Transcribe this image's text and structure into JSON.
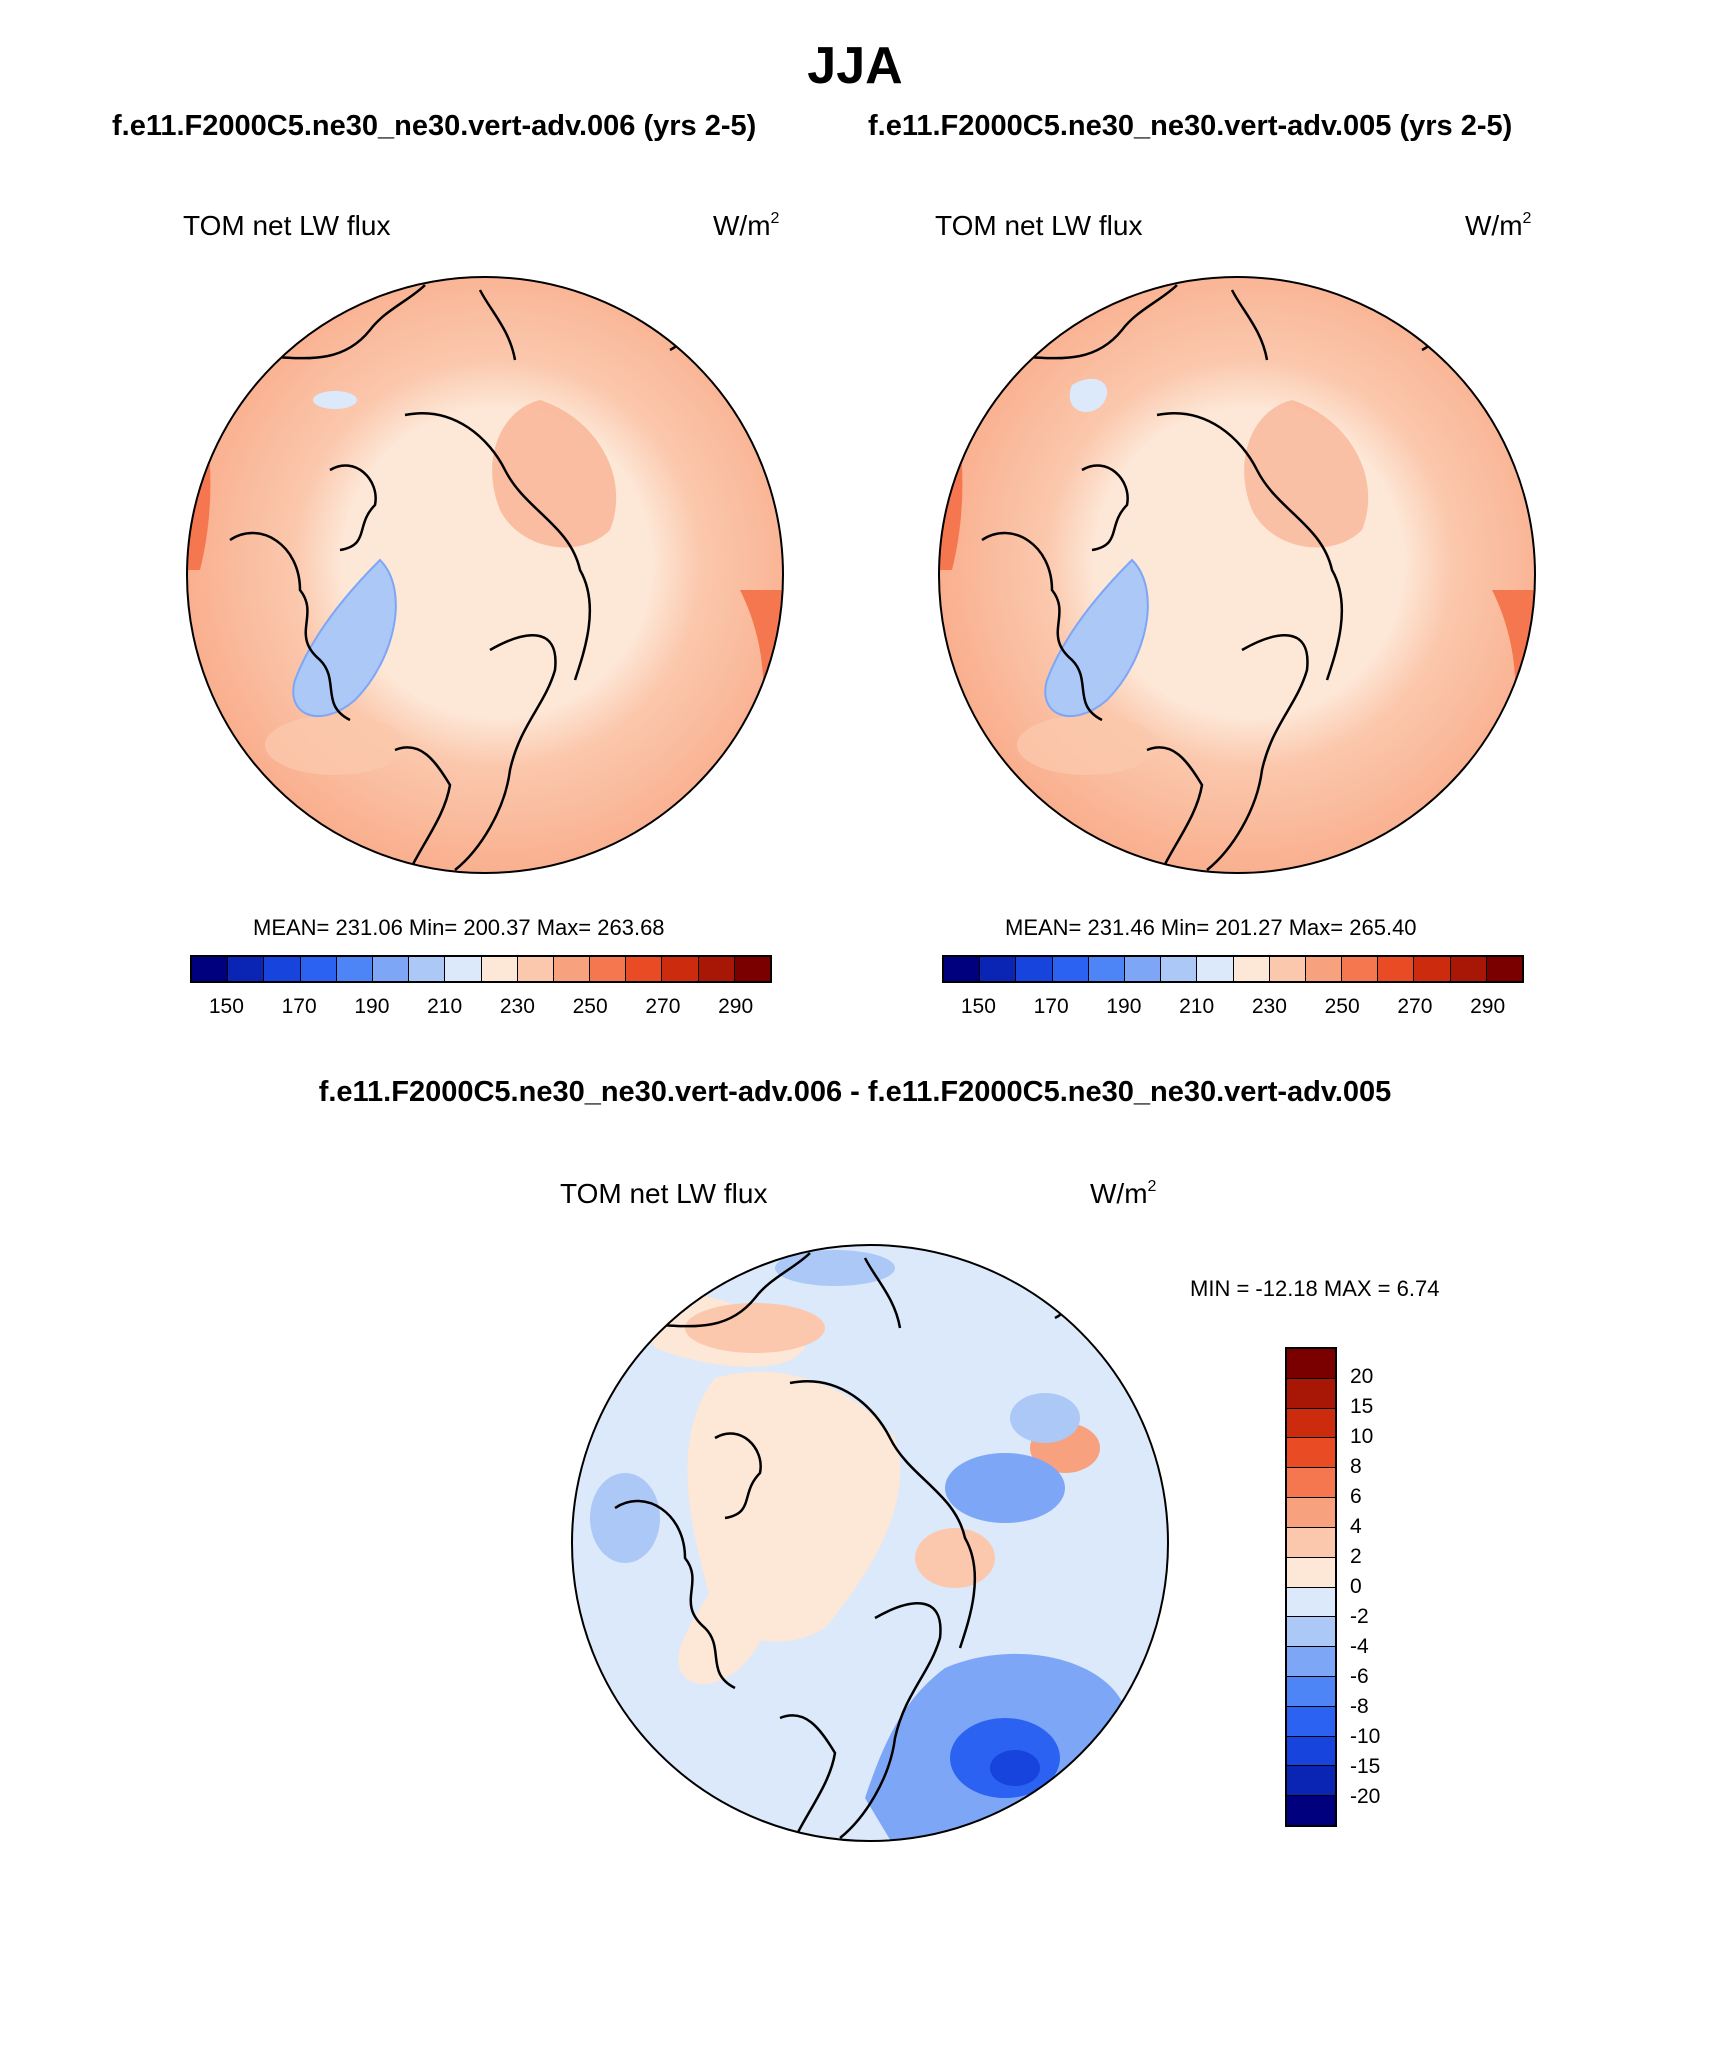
{
  "title": "JJA",
  "panels": [
    {
      "case": "f.e11.F2000C5.ne30_ne30.vert-adv.006 (yrs 2-5)",
      "variable": "TOM net LW flux",
      "units_base": "W/m",
      "units_exp": "2",
      "stats": "MEAN= 231.06  Min= 200.37  Max= 263.68"
    },
    {
      "case": "f.e11.F2000C5.ne30_ne30.vert-adv.005 (yrs 2-5)",
      "variable": "TOM net LW flux",
      "units_base": "W/m",
      "units_exp": "2",
      "stats": "MEAN= 231.46  Min= 201.27  Max= 265.40"
    }
  ],
  "difference": {
    "title": "f.e11.F2000C5.ne30_ne30.vert-adv.006 - f.e11.F2000C5.ne30_ne30.vert-adv.005",
    "variable": "TOM net LW flux",
    "units_base": "W/m",
    "units_exp": "2",
    "minmax": "MIN = -12.18 MAX =   6.74"
  },
  "chart_data": [
    {
      "type": "heatmap",
      "projection": "north-polar-stereographic",
      "title": "f.e11.F2000C5.ne30_ne30.vert-adv.006 (yrs 2-5)",
      "variable": "TOM net LW flux",
      "units": "W/m2",
      "mean": 231.06,
      "min": 200.37,
      "max": 263.68,
      "levels": [
        150,
        160,
        170,
        180,
        190,
        200,
        210,
        220,
        230,
        240,
        250,
        260,
        270,
        280,
        290
      ],
      "tick_labels": [
        "150",
        "170",
        "190",
        "210",
        "230",
        "250",
        "270",
        "290"
      ],
      "colors": [
        "#00007f",
        "#0a24b3",
        "#1644dc",
        "#2b62f2",
        "#4d84f6",
        "#7ea6f6",
        "#acc8f7",
        "#dbe9fb",
        "#fde7d6",
        "#fbc8ad",
        "#f8a17e",
        "#f5774f",
        "#e94b24",
        "#cc2b0e",
        "#a81605",
        "#7a0000"
      ]
    },
    {
      "type": "heatmap",
      "projection": "north-polar-stereographic",
      "title": "f.e11.F2000C5.ne30_ne30.vert-adv.005 (yrs 2-5)",
      "variable": "TOM net LW flux",
      "units": "W/m2",
      "mean": 231.46,
      "min": 201.27,
      "max": 265.4,
      "levels": [
        150,
        160,
        170,
        180,
        190,
        200,
        210,
        220,
        230,
        240,
        250,
        260,
        270,
        280,
        290
      ],
      "tick_labels": [
        "150",
        "170",
        "190",
        "210",
        "230",
        "250",
        "270",
        "290"
      ],
      "colors": [
        "#00007f",
        "#0a24b3",
        "#1644dc",
        "#2b62f2",
        "#4d84f6",
        "#7ea6f6",
        "#acc8f7",
        "#dbe9fb",
        "#fde7d6",
        "#fbc8ad",
        "#f8a17e",
        "#f5774f",
        "#e94b24",
        "#cc2b0e",
        "#a81605",
        "#7a0000"
      ]
    },
    {
      "type": "heatmap",
      "projection": "north-polar-stereographic",
      "title": "f.e11.F2000C5.ne30_ne30.vert-adv.006 - f.e11.F2000C5.ne30_ne30.vert-adv.005",
      "variable": "TOM net LW flux",
      "units": "W/m2",
      "min": -12.18,
      "max": 6.74,
      "levels": [
        -20,
        -15,
        -10,
        -8,
        -6,
        -4,
        -2,
        0,
        2,
        4,
        6,
        8,
        10,
        15,
        20
      ],
      "tick_labels": [
        "20",
        "15",
        "10",
        "8",
        "6",
        "4",
        "2",
        "0",
        "-2",
        "-4",
        "-6",
        "-8",
        "-10",
        "-15",
        "-20"
      ],
      "colors_top_to_bottom": [
        "#7a0000",
        "#a81605",
        "#cc2b0e",
        "#e94b24",
        "#f5774f",
        "#f8a17e",
        "#fbc8ad",
        "#fde7d6",
        "#dbe9fb",
        "#acc8f7",
        "#7ea6f6",
        "#4d84f6",
        "#2b62f2",
        "#1644dc",
        "#0a24b3",
        "#00007f"
      ]
    }
  ]
}
